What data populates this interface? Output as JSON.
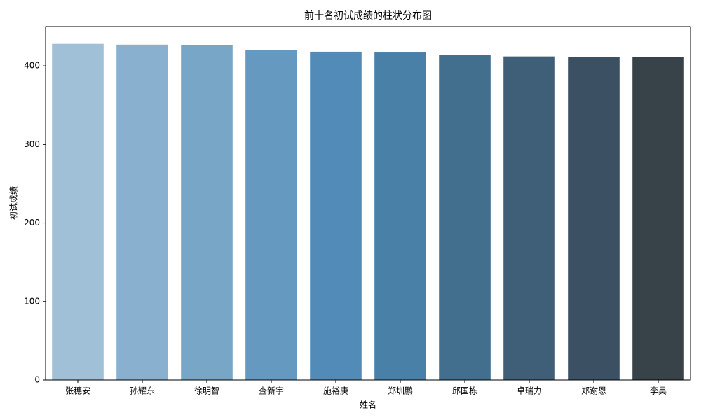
{
  "chart_data": {
    "type": "bar",
    "title": "前十名初试成绩的柱状分布图",
    "x_label": "姓名",
    "y_label": "初试成绩",
    "categories": [
      "张穗安",
      "孙耀东",
      "徐明智",
      "查新宇",
      "施裕庚",
      "郑圳鹏",
      "邱国栋",
      "卓瑞力",
      "郑谢恩",
      "李昊"
    ],
    "values": [
      428,
      427,
      426,
      420,
      418,
      417,
      414,
      412,
      411,
      411
    ],
    "colors": [
      "#9fc0d6",
      "#89b1cf",
      "#77a6c7",
      "#6699bf",
      "#528bb8",
      "#4880a8",
      "#426f8e",
      "#3f5f78",
      "#3b5062",
      "#384349"
    ],
    "ylim": [
      0,
      450
    ],
    "yticks": [
      0,
      100,
      200,
      300,
      400
    ]
  }
}
